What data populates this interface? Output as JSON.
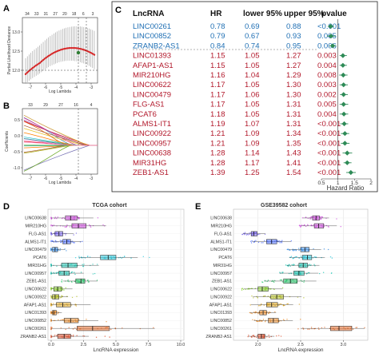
{
  "colors": {
    "blue": "#1f6fb4",
    "red": "#b2182b",
    "forest": "#2e8b57",
    "cv": "#d62728",
    "gray": "#9a9a9a"
  },
  "panel_a": {
    "label": "A",
    "xlabel": "Log Lambda",
    "ylabel": "Partial Likelihood Deviance",
    "xticks": [
      "-7",
      "-6",
      "-5",
      "-4",
      "-3"
    ],
    "yticks": [
      "12.0",
      "12.5",
      "13.0"
    ],
    "top_ticks": [
      "34",
      "33",
      "31",
      "27",
      "20",
      "18",
      "6",
      "3"
    ]
  },
  "panel_b": {
    "label": "B",
    "xlabel": "Log Lambda",
    "ylabel": "Coefficients",
    "xticks": [
      "-7",
      "-6",
      "-5",
      "-4",
      "-3"
    ],
    "yticks": [
      "-1.0",
      "-0.5",
      "0.0",
      "0.5"
    ],
    "top_ticks": [
      "33",
      "29",
      "27",
      "16",
      "4"
    ]
  },
  "panel_c": {
    "label": "C",
    "headers": {
      "lnc": "LncRNA",
      "hr": "HR",
      "lo": "lower 95%",
      "hi": "upper 95%",
      "p": "pvalue"
    },
    "xlabel": "Hazard Ratio",
    "xticks": [
      "0.5",
      "1",
      "1.5",
      "2"
    ],
    "rows": [
      {
        "name": "LINC00261",
        "hr": "0.78",
        "lo": "0.69",
        "hi": "0.88",
        "p": "<0.001",
        "grp": "blue"
      },
      {
        "name": "LINC00852",
        "hr": "0.79",
        "lo": "0.67",
        "hi": "0.93",
        "p": "0.005",
        "grp": "blue"
      },
      {
        "name": "ZRANB2-AS1",
        "hr": "0.84",
        "lo": "0.74",
        "hi": "0.95",
        "p": "0.006",
        "grp": "blue"
      },
      {
        "name": "LINC01393",
        "hr": "1.15",
        "lo": "1.05",
        "hi": "1.27",
        "p": "0.003",
        "grp": "red"
      },
      {
        "name": "AFAP1-AS1",
        "hr": "1.15",
        "lo": "1.05",
        "hi": "1.27",
        "p": "0.004",
        "grp": "red"
      },
      {
        "name": "MIR210HG",
        "hr": "1.16",
        "lo": "1.04",
        "hi": "1.29",
        "p": "0.008",
        "grp": "red"
      },
      {
        "name": "LINC00622",
        "hr": "1.17",
        "lo": "1.05",
        "hi": "1.30",
        "p": "0.003",
        "grp": "red"
      },
      {
        "name": "LINC00479",
        "hr": "1.17",
        "lo": "1.06",
        "hi": "1.30",
        "p": "0.002",
        "grp": "red"
      },
      {
        "name": "FLG-AS1",
        "hr": "1.17",
        "lo": "1.05",
        "hi": "1.31",
        "p": "0.005",
        "grp": "red"
      },
      {
        "name": "PCAT6",
        "hr": "1.18",
        "lo": "1.05",
        "hi": "1.31",
        "p": "0.004",
        "grp": "red"
      },
      {
        "name": "ALMS1-IT1",
        "hr": "1.19",
        "lo": "1.07",
        "hi": "1.31",
        "p": "<0.001",
        "grp": "red"
      },
      {
        "name": "LINC00922",
        "hr": "1.21",
        "lo": "1.09",
        "hi": "1.34",
        "p": "<0.001",
        "grp": "red"
      },
      {
        "name": "LINC00957",
        "hr": "1.21",
        "lo": "1.09",
        "hi": "1.35",
        "p": "<0.001",
        "grp": "red"
      },
      {
        "name": "LINC00638",
        "hr": "1.28",
        "lo": "1.14",
        "hi": "1.43",
        "p": "<0.001",
        "grp": "red"
      },
      {
        "name": "MIR31HG",
        "hr": "1.28",
        "lo": "1.17",
        "hi": "1.41",
        "p": "<0.001",
        "grp": "red"
      },
      {
        "name": "ZEB1-AS1",
        "hr": "1.39",
        "lo": "1.25",
        "hi": "1.54",
        "p": "<0.001",
        "grp": "red"
      }
    ]
  },
  "panel_d": {
    "label": "D",
    "title": "TCGA cohort",
    "xlabel": "LncRNA expression",
    "xticks": [
      "0.0",
      "2.5",
      "5.0",
      "7.5",
      "10.0"
    ],
    "xlim": [
      0,
      10
    ],
    "genes": [
      {
        "name": "LINC00638",
        "q1": 1.1,
        "med": 1.5,
        "q3": 2.0,
        "color": "#d04de0"
      },
      {
        "name": "MIR210HG",
        "q1": 1.6,
        "med": 2.1,
        "q3": 2.7,
        "color": "#d04de0"
      },
      {
        "name": "FLG-AS1",
        "q1": 0.3,
        "med": 0.6,
        "q3": 0.9,
        "color": "#7b68ee"
      },
      {
        "name": "ALMS1-IT1",
        "q1": 0.9,
        "med": 1.2,
        "q3": 1.5,
        "color": "#4a6cff"
      },
      {
        "name": "LINC00479",
        "q1": 0.1,
        "med": 0.3,
        "q3": 0.5,
        "color": "#3a8ee6"
      },
      {
        "name": "PCAT6",
        "q1": 3.8,
        "med": 4.4,
        "q3": 5.0,
        "color": "#25c5d8"
      },
      {
        "name": "MIR31HG",
        "q1": 0.8,
        "med": 1.3,
        "q3": 2.0,
        "color": "#20c7b5"
      },
      {
        "name": "LINC00957",
        "q1": 0.6,
        "med": 1.0,
        "q3": 1.4,
        "color": "#20c7b5"
      },
      {
        "name": "ZEB1-AS1",
        "q1": 1.9,
        "med": 2.3,
        "q3": 2.6,
        "color": "#2ecc71"
      },
      {
        "name": "LINC00622",
        "q1": 0.2,
        "med": 0.5,
        "q3": 0.8,
        "color": "#8bd22f"
      },
      {
        "name": "LINC00922",
        "q1": 0.1,
        "med": 0.3,
        "q3": 0.6,
        "color": "#b7c12a"
      },
      {
        "name": "AFAP1-AS1",
        "q1": 0.4,
        "med": 0.9,
        "q3": 1.5,
        "color": "#d9a321"
      },
      {
        "name": "LINC01393",
        "q1": 0.1,
        "med": 0.2,
        "q3": 0.4,
        "color": "#e6892a"
      },
      {
        "name": "LINC00852",
        "q1": 1.0,
        "med": 1.5,
        "q3": 2.1,
        "color": "#e6892a"
      },
      {
        "name": "LINC00261",
        "q1": 2.0,
        "med": 3.2,
        "q3": 4.5,
        "color": "#e36b2c"
      },
      {
        "name": "ZRANB2-AS1",
        "q1": 0.5,
        "med": 1.0,
        "q3": 1.5,
        "color": "#e0502e"
      }
    ]
  },
  "panel_e": {
    "label": "E",
    "title": "GSE39582 cohort",
    "xlabel": "LncRNA expression",
    "xticks": [
      "2.0",
      "2.5",
      "3.0"
    ],
    "xlim": [
      1.75,
      3.25
    ],
    "genes": [
      {
        "name": "LINC00638",
        "q1": 2.64,
        "med": 2.68,
        "q3": 2.72,
        "color": "#d04de0"
      },
      {
        "name": "MIR210HG",
        "q1": 2.66,
        "med": 2.71,
        "q3": 2.77,
        "color": "#d04de0"
      },
      {
        "name": "FLG-AS1",
        "q1": 1.92,
        "med": 1.95,
        "q3": 1.99,
        "color": "#7b68ee"
      },
      {
        "name": "ALMS1-IT1",
        "q1": 2.1,
        "med": 2.16,
        "q3": 2.22,
        "color": "#4a6cff"
      },
      {
        "name": "LINC00479",
        "q1": 2.5,
        "med": 2.55,
        "q3": 2.6,
        "color": "#3a8ee6"
      },
      {
        "name": "PCAT6",
        "q1": 2.52,
        "med": 2.58,
        "q3": 2.63,
        "color": "#25c5d8"
      },
      {
        "name": "MIR31HG",
        "q1": 2.48,
        "med": 2.53,
        "q3": 2.58,
        "color": "#20c7b5"
      },
      {
        "name": "LINC00957",
        "q1": 2.42,
        "med": 2.48,
        "q3": 2.54,
        "color": "#20c7b5"
      },
      {
        "name": "ZEB1-AS1",
        "q1": 2.3,
        "med": 2.38,
        "q3": 2.46,
        "color": "#2ecc71"
      },
      {
        "name": "LINC00622",
        "q1": 2.0,
        "med": 2.05,
        "q3": 2.12,
        "color": "#8bd22f"
      },
      {
        "name": "LINC00922",
        "q1": 2.15,
        "med": 2.22,
        "q3": 2.3,
        "color": "#b7c12a"
      },
      {
        "name": "AFAP1-AS1",
        "q1": 2.1,
        "med": 2.16,
        "q3": 2.23,
        "color": "#d9a321"
      },
      {
        "name": "LINC01393",
        "q1": 2.02,
        "med": 2.06,
        "q3": 2.1,
        "color": "#e6892a"
      },
      {
        "name": "LINC00852",
        "q1": 2.12,
        "med": 2.18,
        "q3": 2.24,
        "color": "#e6892a"
      },
      {
        "name": "LINC00261",
        "q1": 2.85,
        "med": 2.95,
        "q3": 3.1,
        "color": "#e36b2c"
      },
      {
        "name": "ZRANB2-AS1",
        "q1": 2.0,
        "med": 2.04,
        "q3": 2.08,
        "color": "#e0502e"
      }
    ]
  }
}
